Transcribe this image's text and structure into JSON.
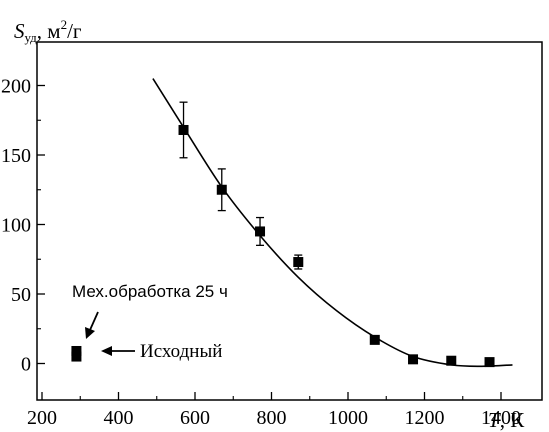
{
  "chart_data": {
    "type": "scatter",
    "ylabel": {
      "symbol": "S",
      "subscript": "уд",
      "unit_pre": ", м",
      "unit_sup": "2",
      "unit_post": "/г"
    },
    "xlabel": {
      "symbol": "T",
      "unit": ", К"
    },
    "xlim": [
      200,
      1500
    ],
    "ylim": [
      -20,
      215
    ],
    "xticks": [
      200,
      400,
      600,
      800,
      1000,
      1200,
      1400
    ],
    "yticks": [
      0,
      50,
      100,
      150,
      200
    ],
    "grid": false,
    "legend": "none",
    "series": [
      {
        "type": "scatter",
        "marker": "square",
        "points": [
          {
            "x": 570,
            "y": 168,
            "err": 20
          },
          {
            "x": 670,
            "y": 125,
            "err": 15
          },
          {
            "x": 770,
            "y": 95,
            "err": 10
          },
          {
            "x": 870,
            "y": 73,
            "err": 5
          },
          {
            "x": 1070,
            "y": 17,
            "err": 0
          },
          {
            "x": 1170,
            "y": 3,
            "err": 0
          },
          {
            "x": 1270,
            "y": 2,
            "err": 0
          },
          {
            "x": 1370,
            "y": 1,
            "err": 0
          }
        ]
      },
      {
        "type": "line",
        "curve": "fit",
        "points": [
          {
            "x": 490,
            "y": 205
          },
          {
            "x": 570,
            "y": 170
          },
          {
            "x": 670,
            "y": 127
          },
          {
            "x": 770,
            "y": 92
          },
          {
            "x": 870,
            "y": 62
          },
          {
            "x": 970,
            "y": 38
          },
          {
            "x": 1070,
            "y": 19
          },
          {
            "x": 1170,
            "y": 5
          },
          {
            "x": 1270,
            "y": -1
          },
          {
            "x": 1350,
            "y": -2
          },
          {
            "x": 1430,
            "y": -1
          }
        ]
      },
      {
        "type": "scatter",
        "marker": "square",
        "points": [
          {
            "x": 290,
            "y": 9
          },
          {
            "x": 290,
            "y": 5
          }
        ]
      }
    ],
    "annotations": [
      {
        "text": "Мех.обработка 25 ч"
      },
      {
        "text": "Исходный"
      }
    ]
  }
}
